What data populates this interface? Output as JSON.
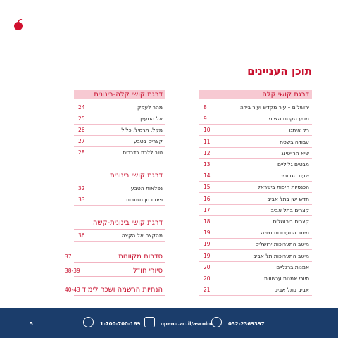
{
  "title": "תוכן העניינים",
  "right_column": {
    "heading": "דרגת קושי קלה",
    "items": [
      {
        "label": "ירושלים – עיר מקדש ועיר בירה",
        "page": "8"
      },
      {
        "label": "מסע הקסם הציוני",
        "page": "9"
      },
      {
        "label": "רק איתנו",
        "page": "10"
      },
      {
        "label": "עבודה בשטח",
        "page": "11"
      },
      {
        "label": "שיא הרייטינג",
        "page": "12"
      },
      {
        "label": "מבטים גליליים",
        "page": "13"
      },
      {
        "label": "שעת הגבורים",
        "page": "14"
      },
      {
        "label": "הכנסיות היפות בישראל",
        "page": "15"
      },
      {
        "label": "חדש ישן בתל אביב",
        "page": "16"
      },
      {
        "label": "קצרים בתל אביב",
        "page": "17"
      },
      {
        "label": "קצרים בירושלים",
        "page": "18"
      },
      {
        "label": "מיטב התערוכות חיפה",
        "page": "19"
      },
      {
        "label": "מיטב התערוכות ירושלים",
        "page": "19"
      },
      {
        "label": "מיטב התערוכות תל אביב",
        "page": "19"
      },
      {
        "label": "אמנות ברגליים",
        "page": "20"
      },
      {
        "label": "סיורי אמנות עכשווית",
        "page": "20"
      },
      {
        "label": "אביב בתל אביב",
        "page": "21"
      }
    ]
  },
  "left_column": {
    "sections": [
      {
        "heading": "דרגת קושי קלה-בינונית",
        "items": [
          {
            "label": "מהר לעמק",
            "page": "24"
          },
          {
            "label": "אל המעיין",
            "page": "25"
          },
          {
            "label": "מקל, תרמיל, כליל",
            "page": "26"
          },
          {
            "label": "קצרים בטבע",
            "page": "27"
          },
          {
            "label": "טוב ללכת בדרכים",
            "page": "28"
          }
        ]
      },
      {
        "heading": "דרגת קושי בינונית",
        "items": [
          {
            "label": "נפלאות הטבע",
            "page": "32"
          },
          {
            "label": "פינות חן נסתרות",
            "page": "33"
          }
        ]
      },
      {
        "heading": "דרגת קושי בינונית-קשה",
        "items": [
          {
            "label": "מהקצה אל הקצה",
            "page": "36"
          }
        ]
      },
      {
        "heading": "סדרות מקוונות",
        "page": "37"
      },
      {
        "heading": "סיורי חו\"ל",
        "page": "38-39"
      },
      {
        "heading": "הנחיות הרשמה ושכר לימוד",
        "page": "40-43"
      }
    ]
  },
  "footer": {
    "page_number": "5",
    "phone": "1-700-700-169",
    "website": "openu.ac.il/ascolot",
    "whatsapp": "052-2369397"
  }
}
